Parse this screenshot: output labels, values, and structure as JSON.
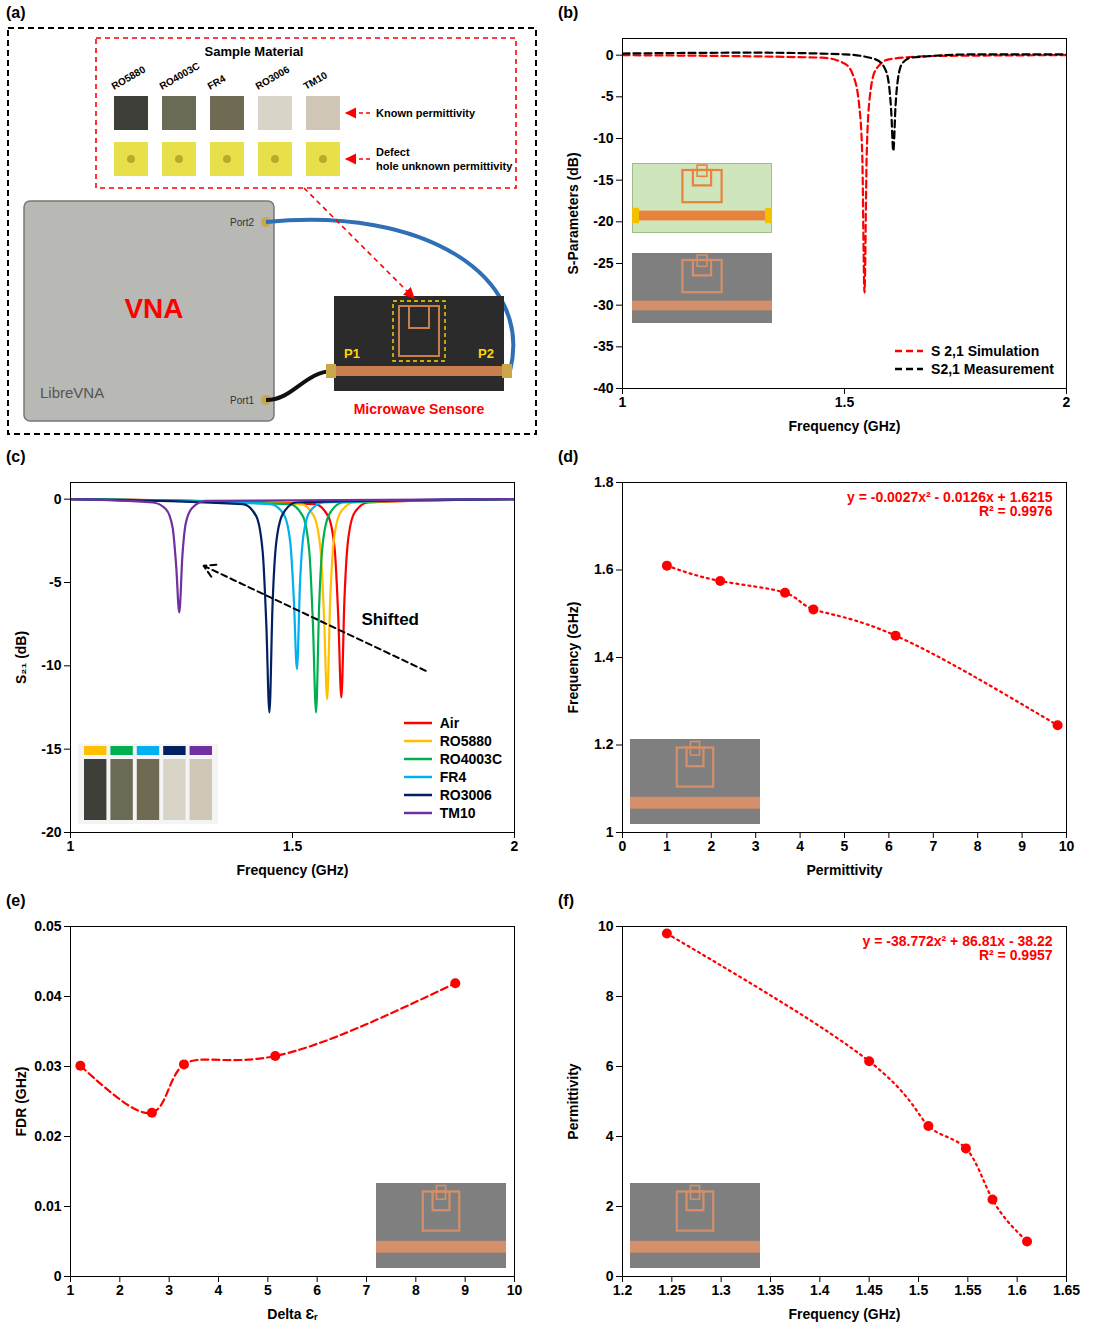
{
  "photo_panel": {
    "panel_label": "(a)",
    "sample_material": {
      "title": "Sample Material",
      "materials": [
        "RO5880",
        "RO4003C",
        "FR4",
        "RO3006",
        "TM10"
      ],
      "rows": [
        "Known permittivity",
        "Defect hole unknown permittivity"
      ]
    },
    "instrument": {
      "label": "VNA",
      "device_name": "LibreVNA",
      "ports": [
        "Port1",
        "Port2"
      ]
    },
    "sensor": {
      "label": "Microwave Sensore",
      "ports": [
        "P1",
        "P2"
      ]
    }
  },
  "chart_data": [
    {
      "panel_label": "(b)",
      "type": "line",
      "x_label": "Frequency (GHz)",
      "y_label": "S-Parameters (dB)",
      "xlim": [
        1,
        2
      ],
      "xticks": [
        1,
        1.5,
        2
      ],
      "ylim": [
        -40,
        2
      ],
      "yticks": [
        -40,
        -35,
        -30,
        -25,
        -20,
        -15,
        -10,
        -5,
        0
      ],
      "grid": false,
      "legend": "bottom-right",
      "series": [
        {
          "name": "S 2,1 Simulation",
          "color": "#ff0000",
          "line_style": "dashed",
          "x": [
            1,
            1.45,
            1.5,
            1.52,
            1.533,
            1.54,
            1.545,
            1.55,
            1.557,
            1.57,
            1.6,
            1.7,
            2
          ],
          "values": [
            0,
            -0.3,
            -1,
            -2.5,
            -6,
            -12,
            -28.5,
            -12,
            -5,
            -1.8,
            -0.5,
            -0.1,
            0
          ]
        },
        {
          "name": "S2,1 Measurement",
          "color": "#000000",
          "line_style": "dashed",
          "x": [
            1,
            1.3,
            1.5,
            1.57,
            1.59,
            1.6,
            1.605,
            1.61,
            1.615,
            1.62,
            1.63,
            1.65,
            1.8,
            2
          ],
          "values": [
            0.2,
            0.3,
            0.1,
            -0.5,
            -1.5,
            -3.5,
            -6.5,
            -11.5,
            -6,
            -3,
            -1,
            -0.3,
            0.1,
            0.1
          ]
        }
      ]
    },
    {
      "panel_label": "(c)",
      "type": "line",
      "x_label": "Frequency (GHz)",
      "y_label": "S₂₁ (dB)",
      "xlim": [
        1,
        2
      ],
      "xticks": [
        1,
        1.5,
        2
      ],
      "ylim": [
        -20,
        1
      ],
      "yticks": [
        -20,
        -15,
        -10,
        -5,
        0
      ],
      "grid": false,
      "legend": "bottom-right",
      "annotations": [
        {
          "text": "Shifted",
          "x": 1.72,
          "y": -7.2,
          "arrow": {
            "x1": 1.8,
            "y1": -10.3,
            "x2": 1.3,
            "y2": -4
          }
        }
      ],
      "series": [
        {
          "name": "Air",
          "color": "#ff0000",
          "line_style": "solid",
          "x": [
            1,
            1.55,
            1.58,
            1.595,
            1.603,
            1.61,
            1.617,
            1.625,
            1.64,
            1.67,
            2
          ],
          "values": [
            0,
            -0.3,
            -1,
            -3,
            -7,
            -11.9,
            -6,
            -2.5,
            -0.8,
            -0.2,
            0
          ]
        },
        {
          "name": "RO5880",
          "color": "#ffc000",
          "line_style": "solid",
          "x": [
            1,
            1.518,
            1.548,
            1.563,
            1.571,
            1.578,
            1.585,
            1.593,
            1.608,
            1.638,
            2
          ],
          "values": [
            0,
            -0.3,
            -1,
            -3,
            -7,
            -12,
            -6,
            -2.5,
            -0.8,
            -0.2,
            0
          ]
        },
        {
          "name": "RO4003C",
          "color": "#00b050",
          "line_style": "solid",
          "x": [
            1,
            1.493,
            1.523,
            1.538,
            1.546,
            1.553,
            1.56,
            1.568,
            1.583,
            1.613,
            2
          ],
          "values": [
            0,
            -0.3,
            -1,
            -3.2,
            -7.5,
            -12.8,
            -6.4,
            -2.7,
            -0.9,
            -0.2,
            0
          ]
        },
        {
          "name": "FR4",
          "color": "#00b0f0",
          "line_style": "solid",
          "x": [
            1,
            1.45,
            1.48,
            1.495,
            1.503,
            1.51,
            1.517,
            1.525,
            1.54,
            1.57,
            2
          ],
          "values": [
            0,
            -0.3,
            -0.9,
            -2.6,
            -6,
            -10.2,
            -5,
            -2.1,
            -0.7,
            -0.2,
            0
          ]
        },
        {
          "name": "RO3006",
          "color": "#002060",
          "line_style": "solid",
          "x": [
            1,
            1.388,
            1.418,
            1.433,
            1.441,
            1.448,
            1.455,
            1.463,
            1.478,
            1.508,
            2
          ],
          "values": [
            0,
            -0.3,
            -1,
            -3.2,
            -7.5,
            -12.8,
            -6.4,
            -2.7,
            -0.9,
            -0.2,
            0
          ]
        },
        {
          "name": "TM10",
          "color": "#7030a0",
          "line_style": "solid",
          "x": [
            1,
            1.185,
            1.215,
            1.23,
            1.238,
            1.245,
            1.252,
            1.26,
            1.275,
            1.305,
            2
          ],
          "values": [
            0,
            -0.2,
            -0.6,
            -1.7,
            -4,
            -6.8,
            -3.4,
            -1.4,
            -0.5,
            -0.1,
            0
          ]
        }
      ]
    },
    {
      "panel_label": "(d)",
      "type": "scatter",
      "x_label": "Permittivity",
      "y_label": "Frequency (GHz)",
      "xlim": [
        0,
        10
      ],
      "xticks": [
        0,
        1,
        2,
        3,
        4,
        5,
        6,
        7,
        8,
        9,
        10
      ],
      "ylim": [
        1,
        1.8
      ],
      "yticks": [
        1,
        1.2,
        1.4,
        1.6,
        1.8
      ],
      "grid": false,
      "x": [
        1,
        2.2,
        3.66,
        4.3,
        6.15,
        9.8
      ],
      "values": [
        1.61,
        1.575,
        1.548,
        1.51,
        1.45,
        1.245
      ],
      "color": "#ff0000",
      "marker": "circle",
      "line_style": "dotted",
      "annotations": [
        {
          "text": "y = -0.0027x² - 0.0126x + 1.6215"
        },
        {
          "text": "R² = 0.9976"
        }
      ]
    },
    {
      "panel_label": "(e)",
      "type": "scatter",
      "x_label": "Delta Ɛᵣ",
      "y_label": "FDR (GHz)",
      "xlim": [
        1,
        10
      ],
      "xticks": [
        1,
        2,
        3,
        4,
        5,
        6,
        7,
        8,
        9,
        10
      ],
      "ylim": [
        0,
        0.05
      ],
      "yticks": [
        0,
        0.01,
        0.02,
        0.03,
        0.04,
        0.05
      ],
      "grid": false,
      "x": [
        1.2,
        2.65,
        3.3,
        5.15,
        8.8
      ],
      "values": [
        0.0301,
        0.0234,
        0.0303,
        0.0315,
        0.0419
      ],
      "color": "#ff0000",
      "marker": "circle",
      "line_style": "dashed"
    },
    {
      "panel_label": "(f)",
      "type": "scatter",
      "x_label": "Frequency (GHz)",
      "y_label": "Permittivity",
      "xlim": [
        1.2,
        1.65
      ],
      "xticks": [
        1.2,
        1.25,
        1.3,
        1.35,
        1.4,
        1.45,
        1.5,
        1.55,
        1.6,
        1.65
      ],
      "ylim": [
        0,
        10
      ],
      "yticks": [
        0,
        2,
        4,
        6,
        8,
        10
      ],
      "grid": false,
      "x": [
        1.245,
        1.45,
        1.51,
        1.548,
        1.575,
        1.61
      ],
      "values": [
        9.8,
        6.15,
        4.3,
        3.66,
        2.2,
        1.0
      ],
      "color": "#ff0000",
      "marker": "circle",
      "line_style": "dotted",
      "annotations": [
        {
          "text": "y = -38.772x² + 86.81x - 38.22"
        },
        {
          "text": "R² = 0.9957"
        }
      ]
    }
  ]
}
